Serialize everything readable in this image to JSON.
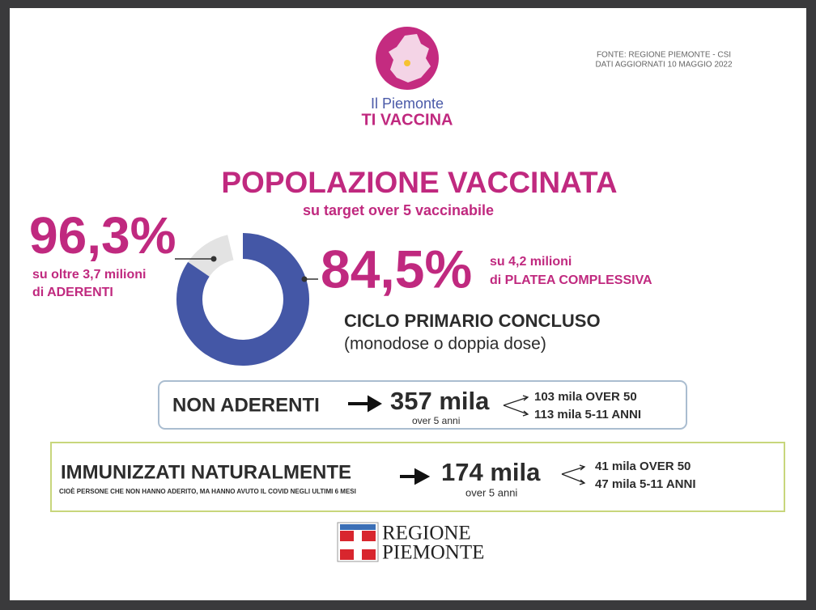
{
  "header": {
    "logo_line1": "Il Piemonte",
    "logo_line2": "TI VACCINA",
    "source_line1": "FONTE: REGIONE PIEMONTE - CSI",
    "source_line2": "DATI AGGIORNATI 10 MAGGIO 2022"
  },
  "title": "POPOLAZIONE VACCINATA",
  "subtitle": "su target over 5 vaccinabile",
  "stats": {
    "aderenti": {
      "value": 96.3,
      "label": "96,3%",
      "line1": "su oltre 3,7 milioni",
      "line2": "di ADERENTI"
    },
    "platea": {
      "value": 84.5,
      "label": "84,5%",
      "line1": "su 4,2 milioni",
      "line2": "di PLATEA COMPLESSIVA"
    }
  },
  "ciclo": {
    "title": "CICLO PRIMARIO CONCLUSO",
    "note": "(monodose o doppia dose)"
  },
  "non_aderenti": {
    "label": "NON ADERENTI",
    "total": "357 mila",
    "total_note": "over 5 anni",
    "breakdown": [
      "103 mila OVER 50",
      "113 mila 5-11 ANNI"
    ]
  },
  "immunizzati": {
    "label": "IMMUNIZZATI NATURALMENTE",
    "note": "CIOÈ PERSONE CHE NON HANNO ADERITO, MA HANNO AVUTO IL COVID NEGLI ULTIMI 6 MESI",
    "total": "174 mila",
    "total_note": "over 5 anni",
    "breakdown": [
      "41 mila OVER 50",
      "47 mila 5-11 ANNI"
    ]
  },
  "footer": {
    "logo_line1": "REGIONE",
    "logo_line2": "PIEMONTE"
  }
}
